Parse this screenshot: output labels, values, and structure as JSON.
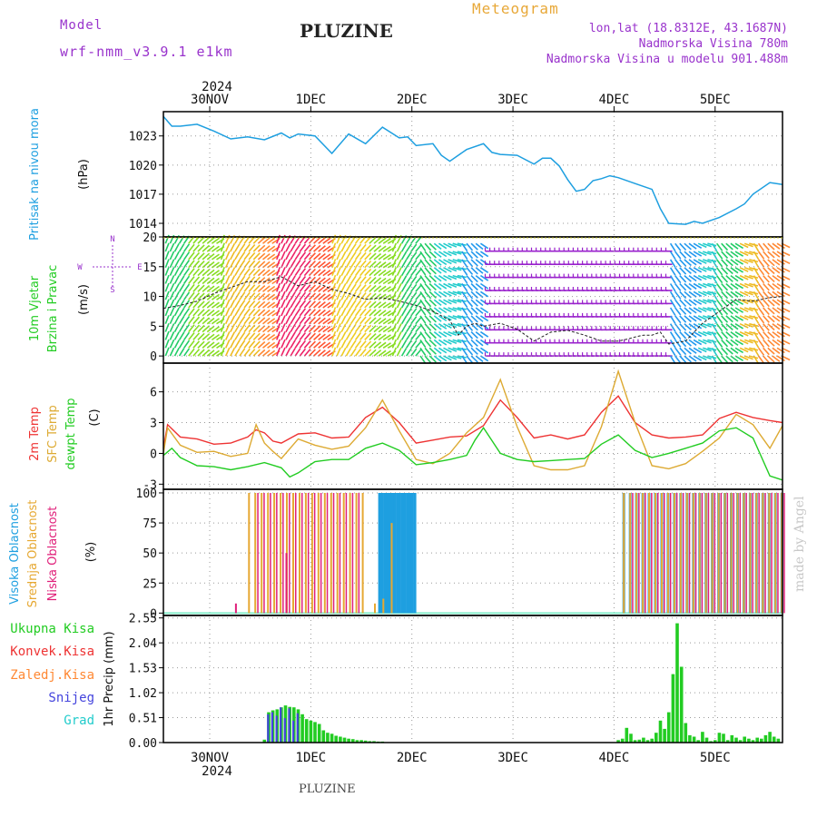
{
  "header": {
    "model_label": "Model",
    "model_name": "wrf-nmm_v3.9.1 e1km",
    "station": "PLUZINE",
    "product": "Meteogram",
    "coords": "lon,lat (18.8312E, 43.1687N)",
    "elevation": "Nadmorska Visina 780m",
    "model_elevation": "Nadmorska Visina u modelu 901.488m",
    "footer_station": "PLUZINE",
    "watermark": "made by Angel"
  },
  "colors": {
    "purple": "#9933cc",
    "orange": "#e8a838",
    "pressure": "#1e9fe0",
    "red": "#ee3333",
    "green": "#22cc22",
    "gold": "#ddaa33",
    "dewgreen": "#22cc22",
    "cloud_high": "#1e9fe0",
    "cloud_mid": "#e6a832",
    "cloud_low": "#e0207a",
    "precip_total": "#22cc22",
    "precip_conv": "#ee3333",
    "precip_frz": "#ff8833",
    "precip_snow": "#4444dd",
    "precip_graupel": "#22cccc"
  },
  "chart_data": [
    {
      "id": "time_axis",
      "type": "table",
      "year_label": "2024",
      "days": [
        "30NOV",
        "1DEC",
        "2DEC",
        "3DEC",
        "4DEC",
        "5DEC"
      ],
      "hours_range": [
        0,
        147
      ]
    },
    {
      "id": "pressure",
      "type": "line",
      "ylabel": "(hPa)",
      "side_label": "Pritisak na nivou mora",
      "yticks": [
        1014,
        1017,
        1020,
        1023
      ],
      "ylim": [
        1012.6,
        1025.5
      ],
      "series": [
        {
          "x": [
            0,
            2,
            4,
            8,
            12,
            16,
            20,
            24,
            28,
            30,
            32,
            36,
            40,
            44,
            48,
            52,
            56,
            58,
            60,
            64,
            66,
            68,
            72,
            76,
            78,
            80,
            84,
            88,
            90,
            92,
            94,
            96,
            98,
            100,
            102,
            104,
            106,
            108,
            112,
            116,
            118,
            120,
            124,
            126,
            128,
            132,
            136,
            138,
            140,
            144,
            147
          ],
          "values": [
            1025.0,
            1024.0,
            1024.0,
            1024.2,
            1023.5,
            1022.7,
            1022.9,
            1022.6,
            1023.3,
            1022.8,
            1023.2,
            1023.0,
            1021.2,
            1023.2,
            1022.2,
            1023.9,
            1022.8,
            1022.9,
            1022.0,
            1022.2,
            1021.0,
            1020.4,
            1021.6,
            1022.2,
            1021.3,
            1021.1,
            1021.0,
            1020.1,
            1020.7,
            1020.7,
            1019.9,
            1018.5,
            1017.3,
            1017.5,
            1018.4,
            1018.6,
            1018.9,
            1018.7,
            1018.1,
            1017.5,
            1015.5,
            1014.0,
            1013.9,
            1014.2,
            1014.0,
            1014.6,
            1015.5,
            1016.0,
            1017.0,
            1018.2,
            1018.0
          ]
        }
      ]
    },
    {
      "id": "wind",
      "type": "line",
      "ylabel": "(m/s)",
      "side_label_1": "10m Vjetar",
      "side_label_2": "Brzina i Pravac",
      "compass": {
        "n": "N",
        "w": "W",
        "e": "E",
        "s": "S"
      },
      "yticks": [
        0,
        5,
        10,
        15,
        20
      ],
      "ylim": [
        -1.2,
        20
      ],
      "speed": {
        "x": [
          0,
          4,
          8,
          12,
          16,
          20,
          24,
          28,
          32,
          36,
          40,
          44,
          48,
          52,
          56,
          60,
          64,
          68,
          70,
          72,
          74,
          76,
          80,
          84,
          88,
          92,
          96,
          100,
          104,
          108,
          110,
          112,
          114,
          116,
          118,
          120,
          124,
          128,
          132,
          136,
          140,
          144,
          147
        ],
        "values": [
          8.0,
          8.5,
          9.2,
          10.5,
          11.5,
          12.5,
          12.5,
          13.3,
          11.8,
          12.5,
          11.2,
          10.5,
          9.5,
          9.8,
          9.2,
          8.5,
          7.5,
          6.0,
          3.5,
          5.0,
          5.5,
          5.0,
          5.5,
          4.5,
          2.5,
          4.0,
          4.3,
          3.5,
          2.5,
          2.5,
          2.8,
          3.2,
          3.5,
          3.5,
          4.0,
          2.0,
          2.5,
          5.5,
          7.5,
          9.5,
          9.2,
          9.8,
          10.0
        ]
      },
      "direction_bands": [
        {
          "from": 0,
          "to": 5,
          "color": "#22cc66"
        },
        {
          "from": 5,
          "to": 14,
          "color": "#88dd22"
        },
        {
          "from": 14,
          "to": 22,
          "color": "#eebb22"
        },
        {
          "from": 22,
          "to": 26,
          "color": "#ff8833"
        },
        {
          "from": 26,
          "to": 34,
          "color": "#ee2266"
        },
        {
          "from": 34,
          "to": 40,
          "color": "#ff5533"
        },
        {
          "from": 40,
          "to": 48,
          "color": "#eecc22"
        },
        {
          "from": 48,
          "to": 56,
          "color": "#88dd22"
        },
        {
          "from": 56,
          "to": 64,
          "color": "#22cc66"
        },
        {
          "from": 64,
          "to": 70,
          "color": "#22cccc"
        },
        {
          "from": 70,
          "to": 76,
          "color": "#2299ee"
        },
        {
          "from": 76,
          "to": 120,
          "color": "#9922cc"
        },
        {
          "from": 120,
          "to": 126,
          "color": "#2299ee"
        },
        {
          "from": 126,
          "to": 131,
          "color": "#22cccc"
        },
        {
          "from": 131,
          "to": 136,
          "color": "#22cc66"
        },
        {
          "from": 136,
          "to": 141,
          "color": "#eebb22"
        },
        {
          "from": 141,
          "to": 147,
          "color": "#ff8833"
        }
      ]
    },
    {
      "id": "temperature",
      "type": "line",
      "ylabel": "(C)",
      "side_label_1": "2m Temp",
      "side_label_2": "SFC Temp",
      "side_label_3": "dewpt Temp",
      "yticks": [
        -3,
        0,
        3,
        6
      ],
      "ylim": [
        -3.5,
        8.8
      ],
      "series": [
        {
          "color_key": "red",
          "x": [
            0,
            1,
            4,
            8,
            12,
            16,
            20,
            22,
            24,
            26,
            28,
            32,
            36,
            40,
            44,
            48,
            52,
            56,
            60,
            64,
            68,
            72,
            76,
            80,
            84,
            88,
            92,
            96,
            100,
            104,
            108,
            112,
            116,
            120,
            124,
            128,
            132,
            136,
            140,
            144,
            147
          ],
          "values": [
            0.5,
            2.8,
            1.6,
            1.4,
            0.9,
            1.0,
            1.6,
            2.3,
            2.0,
            1.2,
            1.0,
            1.9,
            2.0,
            1.5,
            1.6,
            3.5,
            4.5,
            3.0,
            1.0,
            1.3,
            1.6,
            1.7,
            2.7,
            5.2,
            3.5,
            1.5,
            1.8,
            1.4,
            1.8,
            4.0,
            5.6,
            3.0,
            1.8,
            1.5,
            1.6,
            1.8,
            3.4,
            4.0,
            3.5,
            3.2,
            3.0
          ]
        },
        {
          "color_key": "gold",
          "x": [
            0,
            1,
            4,
            8,
            12,
            16,
            20,
            22,
            24,
            26,
            28,
            32,
            36,
            40,
            44,
            48,
            52,
            56,
            60,
            64,
            68,
            72,
            76,
            80,
            84,
            88,
            92,
            96,
            100,
            104,
            108,
            112,
            116,
            120,
            124,
            128,
            132,
            136,
            140,
            144,
            147
          ],
          "values": [
            0.0,
            2.5,
            0.8,
            0.1,
            0.2,
            -0.3,
            0.0,
            2.8,
            1.0,
            0.2,
            -0.5,
            1.4,
            0.8,
            0.4,
            0.7,
            2.5,
            5.2,
            2.2,
            -0.6,
            -1.0,
            0.0,
            2.0,
            3.5,
            7.2,
            2.6,
            -1.2,
            -1.6,
            -1.6,
            -1.2,
            2.6,
            8.0,
            3.0,
            -1.2,
            -1.5,
            -1.0,
            0.2,
            1.5,
            3.8,
            2.8,
            0.5,
            2.7
          ]
        },
        {
          "color_key": "dewgreen",
          "x": [
            0,
            2,
            4,
            8,
            12,
            16,
            20,
            24,
            28,
            30,
            32,
            36,
            40,
            44,
            48,
            52,
            56,
            60,
            64,
            68,
            72,
            74,
            76,
            80,
            84,
            88,
            92,
            96,
            100,
            104,
            108,
            112,
            116,
            120,
            124,
            128,
            132,
            136,
            140,
            144,
            147
          ],
          "values": [
            -0.2,
            0.5,
            -0.4,
            -1.2,
            -1.3,
            -1.6,
            -1.3,
            -0.9,
            -1.4,
            -2.3,
            -1.9,
            -0.8,
            -0.6,
            -0.6,
            0.5,
            1.0,
            0.3,
            -1.1,
            -0.9,
            -0.6,
            -0.2,
            1.3,
            2.5,
            0.0,
            -0.6,
            -0.8,
            -0.7,
            -0.6,
            -0.5,
            0.9,
            1.8,
            0.3,
            -0.4,
            0.0,
            0.5,
            1.0,
            2.2,
            2.5,
            1.5,
            -2.2,
            -2.6
          ]
        }
      ]
    },
    {
      "id": "clouds",
      "type": "bar",
      "ylabel": "(%)",
      "side_label_1": "Visoka Oblacnost",
      "side_label_2": "Srednja Oblacnost",
      "side_label_3": "Niska Oblacnost",
      "yticks": [
        0,
        25,
        50,
        75,
        100
      ],
      "ylim": [
        -2,
        103
      ],
      "high": {
        "ranges": [
          [
            51,
            60
          ],
          [
            109,
            147
          ]
        ],
        "values": [
          100,
          100
        ]
      },
      "mid": {
        "ranges": [
          [
            20,
            47
          ],
          [
            109,
            147
          ]
        ],
        "values": [
          100,
          100
        ],
        "spikes": [
          [
            50,
            8
          ],
          [
            52,
            12
          ],
          [
            54,
            75
          ]
        ]
      },
      "low": {
        "ranges": [
          [
            22,
            46
          ],
          [
            111,
            147
          ]
        ],
        "values": [
          100,
          100
        ],
        "spikes": [
          [
            17,
            8
          ],
          [
            29,
            50
          ]
        ]
      }
    },
    {
      "id": "precip",
      "type": "bar",
      "ylabel": "1hr Precip (mm)",
      "legend": [
        {
          "label": "Ukupna Kisa",
          "color_key": "precip_total"
        },
        {
          "label": "Konvek.Kisa",
          "color_key": "precip_conv"
        },
        {
          "label": "Zaledj.Kisa",
          "color_key": "precip_frz"
        },
        {
          "label": "Snijeg",
          "color_key": "precip_snow"
        },
        {
          "label": "Grad",
          "color_key": "precip_graupel"
        }
      ],
      "yticks": [
        0,
        0.51,
        1.02,
        1.53,
        2.04,
        2.55
      ],
      "ylim": [
        0,
        2.6
      ],
      "x": [
        24,
        25,
        26,
        27,
        28,
        29,
        30,
        31,
        32,
        33,
        34,
        35,
        36,
        37,
        38,
        39,
        40,
        41,
        42,
        43,
        44,
        45,
        46,
        47,
        48,
        49,
        50,
        51,
        52,
        108,
        109,
        110,
        111,
        112,
        113,
        114,
        115,
        116,
        117,
        118,
        119,
        120,
        121,
        122,
        123,
        124,
        125,
        126,
        127,
        128,
        129,
        130,
        131,
        132,
        133,
        134,
        135,
        136,
        137,
        138,
        139,
        140,
        141,
        142,
        143,
        144,
        145,
        146
      ],
      "values": [
        0.06,
        0.62,
        0.66,
        0.68,
        0.72,
        0.76,
        0.73,
        0.72,
        0.68,
        0.58,
        0.48,
        0.45,
        0.42,
        0.38,
        0.25,
        0.2,
        0.18,
        0.14,
        0.12,
        0.1,
        0.08,
        0.07,
        0.05,
        0.05,
        0.04,
        0.03,
        0.03,
        0.02,
        0.02,
        0.05,
        0.08,
        0.3,
        0.18,
        0.05,
        0.06,
        0.1,
        0.05,
        0.08,
        0.2,
        0.45,
        0.28,
        0.62,
        1.4,
        2.44,
        1.55,
        0.4,
        0.15,
        0.12,
        0.05,
        0.22,
        0.1,
        0.03,
        0.05,
        0.2,
        0.18,
        0.05,
        0.15,
        0.1,
        0.05,
        0.12,
        0.08,
        0.05,
        0.1,
        0.08,
        0.15,
        0.22,
        0.12,
        0.08
      ],
      "snow_x": [
        25,
        26,
        27,
        28,
        29,
        30,
        31,
        32
      ],
      "snow_values": [
        0.58,
        0.62,
        0.55,
        0.72,
        0.5,
        0.7,
        0.45,
        0.6
      ]
    }
  ]
}
